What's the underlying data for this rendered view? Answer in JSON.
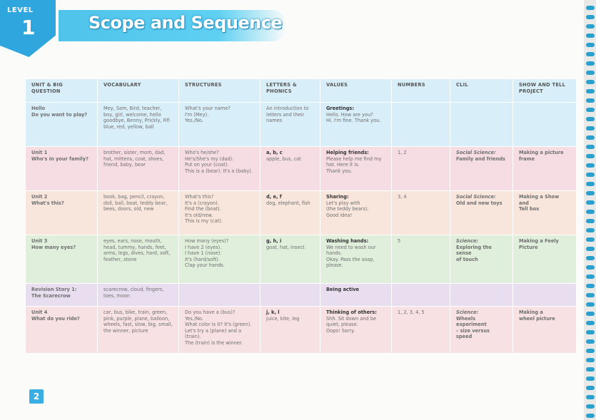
{
  "header": {
    "level_label": "LEVEL",
    "level_number": "1",
    "title": "Scope and Sequence"
  },
  "table": {
    "columns": [
      "UNIT & BIG QUESTION",
      "VOCABULARY",
      "STRUCTURES",
      "LETTERS & PHONICS",
      "VALUES",
      "NUMBERS",
      "CLIL",
      "SHOW AND TELL PROJECT"
    ],
    "rows": [
      {
        "unit": [
          "Hello",
          "Do you want to play?"
        ],
        "vocabulary": "Mey, Sam, Bird, teacher, boy, girl, welcome, hello goodbye, Benny, Prickly, Fifi blue, red, yellow, ball",
        "structures": [
          "What's your name?",
          "I'm (Mey).",
          "Yes./No."
        ],
        "phonics": "An introduction to letters and their names",
        "values_title": "Greetings:",
        "values_text": [
          "Hello. How are you?",
          "Hi. I'm fine. Thank you."
        ],
        "numbers": "",
        "clil": [],
        "show": []
      },
      {
        "unit": [
          "Unit 1",
          "Who's in your family?"
        ],
        "vocabulary": "brother, sister, mom, dad, hat, mittens, coat, shoes, friend, baby, bear",
        "structures": [
          "Who's he/she?",
          "He's/She's my (dad).",
          "Put on your (coat).",
          "This is a (bear). It's a (baby)."
        ],
        "phonics_title": "a, b, c",
        "phonics": "apple, bus, cat",
        "values_title": "Helping friends:",
        "values_text": [
          "Please help me find my hat. Here it is.",
          "Thank you."
        ],
        "numbers": "1, 2",
        "clil": [
          "Social Science:",
          "Family and friends"
        ],
        "show": [
          "Making a picture",
          "frame"
        ]
      },
      {
        "unit": [
          "Unit 2",
          "What's this?"
        ],
        "vocabulary": "book, bag, pencil, crayon, doll, ball, boat, teddy bear, bees, doors, old, new",
        "structures": [
          "What's this?",
          "It's a (crayon).",
          "Find the (boat).",
          "It's old/new.",
          "This is my (cat)."
        ],
        "phonics_title": "d, e, f",
        "phonics": "dog, elephant, fish",
        "values_title": "Sharing:",
        "values_text": [
          "Let's play with",
          "(the teddy bears).",
          "Good idea!"
        ],
        "numbers": "3, 4",
        "clil": [
          "Social Science:",
          "Old and new toys"
        ],
        "show": [
          "Making a Show and",
          "Tell box"
        ]
      },
      {
        "unit": [
          "Unit 3",
          "How many eyes?"
        ],
        "vocabulary": "eyes, ears, nose, mouth, head, tummy, hands, feet, arms, legs, dives, hard, soft, feather, stone",
        "structures": [
          "How many (eyes)?",
          "I have 2 (eyes).",
          "I have 1 (nose).",
          "It's (hard/soft).",
          "Clap your hands."
        ],
        "phonics_title": "g, h, i",
        "phonics": "goat, hat, insect",
        "values_title": "Washing hands:",
        "values_text": [
          "We need to wash our",
          "hands.",
          "Okay. Pass the soap,",
          "please."
        ],
        "numbers": "5",
        "clil": [
          "Science:",
          "Exploring the sense",
          "of touch"
        ],
        "show": [
          "Making a Feely",
          "Picture"
        ]
      },
      {
        "unit": [
          "Revision Story 1:",
          "The Scarecrow"
        ],
        "vocabulary": "scarecrow, cloud, fingers, toes, moon",
        "structures": [],
        "phonics_title": "",
        "phonics": "",
        "values_title": "Being active",
        "values_text": [],
        "numbers": "",
        "clil": [],
        "show": []
      },
      {
        "unit": [
          "Unit 4",
          "What do you ride?"
        ],
        "vocabulary": "car, bus, bike, train, green, pink, purple, plane, balloon, wheels, fast, slow, big, small, the winner, picture",
        "structures": [
          "Do you have a (bus)?",
          "Yes./No.",
          "What color is it?   It's (green).",
          "Let's try a (plane) and a (train).",
          "The (train) is the winner."
        ],
        "phonics_title": "j, k, l",
        "phonics": "juice, kite, leg",
        "values_title": "Thinking of others:",
        "values_text": [
          "Shh. Sit down and be",
          "quiet, please.",
          "Oops! Sorry."
        ],
        "numbers": "1, 2, 3, 4, 5",
        "clil": [
          "Science:",
          "Wheels experiment",
          "– size versus speed"
        ],
        "show": [
          "Making a",
          "wheel picture"
        ]
      }
    ]
  },
  "footer": {
    "page_number": "2"
  },
  "colors": {
    "accent": "#3aaee3",
    "row_blue": "#d8eef8",
    "row_pink": "#f6dde4"
  }
}
